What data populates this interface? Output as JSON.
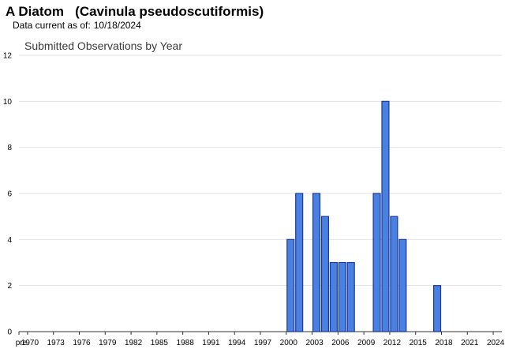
{
  "header": {
    "title": "A Diatom   (Cavinula pseudoscutiformis)",
    "data_current_label": "Data current as of:",
    "data_current_date": "10/18/2024"
  },
  "chart_data": {
    "type": "bar",
    "title": "Submitted Observations by Year",
    "xlabel": "",
    "ylabel": "",
    "ylim": [
      0,
      12
    ],
    "yticks": [
      0,
      2,
      4,
      6,
      8,
      10,
      12
    ],
    "grid": true,
    "legend": "none",
    "bar_color": "#4a80e0",
    "bar_edge_color": "#1a3a9a",
    "x_tick_labels": [
      "pre",
      "1970",
      "1973",
      "1976",
      "1979",
      "1982",
      "1985",
      "1988",
      "1991",
      "1994",
      "1997",
      "2000",
      "2003",
      "2006",
      "2009",
      "2012",
      "2015",
      "2018",
      "2021",
      "2024"
    ],
    "categories": [
      "pre",
      "1970",
      "1971",
      "1972",
      "1973",
      "1974",
      "1975",
      "1976",
      "1977",
      "1978",
      "1979",
      "1980",
      "1981",
      "1982",
      "1983",
      "1984",
      "1985",
      "1986",
      "1987",
      "1988",
      "1989",
      "1990",
      "1991",
      "1992",
      "1993",
      "1994",
      "1995",
      "1996",
      "1997",
      "1998",
      "1999",
      "2000",
      "2001",
      "2002",
      "2003",
      "2004",
      "2005",
      "2006",
      "2007",
      "2008",
      "2009",
      "2010",
      "2011",
      "2012",
      "2013",
      "2014",
      "2015",
      "2016",
      "2017",
      "2018",
      "2019",
      "2020",
      "2021",
      "2022",
      "2023",
      "2024"
    ],
    "values": [
      0,
      0,
      0,
      0,
      0,
      0,
      0,
      0,
      0,
      0,
      0,
      0,
      0,
      0,
      0,
      0,
      0,
      0,
      0,
      0,
      0,
      0,
      0,
      0,
      0,
      0,
      0,
      0,
      0,
      0,
      0,
      4,
      6,
      0,
      6,
      5,
      3,
      3,
      3,
      0,
      0,
      6,
      10,
      5,
      4,
      0,
      0,
      0,
      2,
      0,
      0,
      0,
      0,
      0,
      0,
      0
    ]
  }
}
